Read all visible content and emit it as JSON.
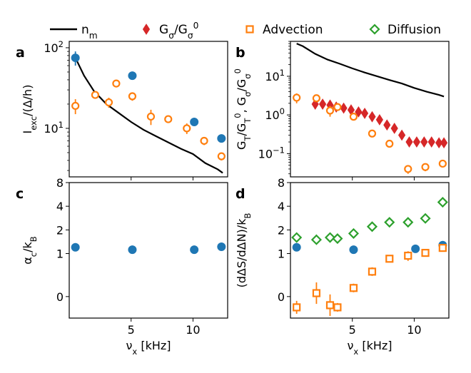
{
  "chart_data": [
    {
      "id": "a",
      "type": "scatter",
      "panel_label": "a",
      "ylabel": "I_exc/(Δ/h)",
      "xlabel": "",
      "yscale": "log",
      "xlim": [
        0,
        12.8
      ],
      "ylim": [
        2.5,
        120
      ],
      "yticks": [
        {
          "v": 10,
          "label": "10¹"
        },
        {
          "v": 100,
          "label": "10²"
        }
      ],
      "xticks": [
        {
          "v": 5,
          "label": ""
        },
        {
          "v": 10,
          "label": ""
        }
      ],
      "series": [
        {
          "name": "n_m",
          "kind": "line",
          "color": "#000000",
          "x": [
            0.5,
            1.2,
            2.0,
            3.0,
            4.0,
            5.0,
            6.0,
            7.0,
            8.0,
            9.0,
            10.0,
            11.0,
            12.0,
            12.4
          ],
          "y": [
            75,
            45,
            29,
            20,
            15.5,
            12,
            9.6,
            8.0,
            6.7,
            5.6,
            4.8,
            3.7,
            3.1,
            2.8
          ]
        },
        {
          "name": "Advection",
          "kind": "circle_open",
          "color": "#ff7f0e",
          "x": [
            0.5,
            2.1,
            3.2,
            3.8,
            5.1,
            6.6,
            8.0,
            9.5,
            10.9,
            12.3
          ],
          "y": [
            19,
            26,
            21,
            36,
            25,
            14,
            13,
            10,
            7,
            4.5
          ],
          "err": [
            4,
            2,
            3,
            2,
            3,
            3,
            1,
            1.5,
            0.8,
            0.5
          ]
        },
        {
          "name": "Diffusion",
          "kind": "circle_filled",
          "color": "#1f77b4",
          "x": [
            0.5,
            5.1,
            10.1,
            12.3
          ],
          "y": [
            75,
            45,
            12,
            7.5
          ],
          "err": [
            15,
            0,
            0,
            0
          ]
        }
      ]
    },
    {
      "id": "b",
      "type": "scatter",
      "panel_label": "b",
      "ylabel": "G_T/G_T⁰, G_σ/G_σ⁰",
      "xlabel": "",
      "yscale": "log",
      "xlim": [
        0,
        12.8
      ],
      "ylim": [
        0.025,
        80
      ],
      "yticks": [
        {
          "v": 0.1,
          "label": "10⁻¹"
        },
        {
          "v": 1,
          "label": "10⁰"
        },
        {
          "v": 10,
          "label": "10¹"
        }
      ],
      "xticks": [
        {
          "v": 5,
          "label": ""
        },
        {
          "v": 10,
          "label": ""
        }
      ],
      "series": [
        {
          "name": "n_m",
          "kind": "line",
          "color": "#000000",
          "x": [
            0.5,
            1.0,
            2.0,
            3.0,
            4.0,
            5.0,
            6.0,
            7.0,
            8.0,
            9.0,
            10.0,
            11.0,
            12.0,
            12.4
          ],
          "y": [
            70,
            60,
            38,
            27,
            21,
            16,
            12.5,
            10,
            8,
            6.5,
            5,
            4,
            3.3,
            3.0
          ]
        },
        {
          "name": "G_σ/G_σ⁰",
          "kind": "diamond_filled",
          "color": "#d62728",
          "x": [
            2.0,
            2.6,
            3.2,
            3.7,
            4.3,
            4.9,
            5.5,
            6.0,
            6.6,
            7.2,
            7.8,
            8.4,
            9.0,
            9.6,
            10.2,
            10.8,
            11.4,
            12.0,
            12.4
          ],
          "y": [
            1.9,
            1.9,
            1.8,
            1.6,
            1.5,
            1.35,
            1.2,
            1.1,
            0.9,
            0.75,
            0.55,
            0.45,
            0.3,
            0.2,
            0.2,
            0.2,
            0.2,
            0.19,
            0.19
          ]
        },
        {
          "name": "Advection",
          "kind": "circle_open",
          "color": "#ff7f0e",
          "x": [
            0.5,
            2.1,
            3.2,
            3.8,
            5.1,
            6.6,
            8.0,
            9.5,
            10.9,
            12.3
          ],
          "y": [
            2.8,
            2.7,
            1.3,
            1.6,
            0.9,
            0.33,
            0.18,
            0.04,
            0.045,
            0.055
          ],
          "err": [
            0.8,
            0.4,
            0.4,
            0.3,
            0.15,
            0.04,
            0.02,
            0.01,
            0.01,
            0.01
          ]
        }
      ]
    },
    {
      "id": "c",
      "type": "scatter",
      "panel_label": "c",
      "ylabel": "α_c/k_B",
      "xlabel": "ν_x [kHz]",
      "yscale": "symlog",
      "xlim": [
        0,
        12.8
      ],
      "ylim": [
        -0.5,
        8
      ],
      "yticks": [
        {
          "v": 0,
          "label": "0"
        },
        {
          "v": 1,
          "label": "1"
        },
        {
          "v": 2,
          "label": "2"
        },
        {
          "v": 4,
          "label": "4"
        },
        {
          "v": 8,
          "label": "8"
        }
      ],
      "xticks": [
        {
          "v": 5,
          "label": "5"
        },
        {
          "v": 10,
          "label": "10"
        }
      ],
      "series": [
        {
          "name": "Diffusion",
          "kind": "circle_filled",
          "color": "#1f77b4",
          "x": [
            0.5,
            5.1,
            10.1,
            12.3
          ],
          "y": [
            1.2,
            1.12,
            1.12,
            1.22
          ]
        }
      ]
    },
    {
      "id": "d",
      "type": "scatter",
      "panel_label": "d",
      "ylabel": "(dΔS/dΔN)/k_B",
      "xlabel": "ν_x [kHz]",
      "yscale": "symlog",
      "xlim": [
        0,
        12.8
      ],
      "ylim": [
        -0.5,
        8
      ],
      "yticks": [
        {
          "v": 0,
          "label": "0"
        },
        {
          "v": 1,
          "label": "1"
        },
        {
          "v": 2,
          "label": "2"
        },
        {
          "v": 4,
          "label": "4"
        },
        {
          "v": 8,
          "label": "8"
        }
      ],
      "xticks": [
        {
          "v": 5,
          "label": "5"
        },
        {
          "v": 10,
          "label": "10"
        }
      ],
      "series": [
        {
          "name": "Diffusion",
          "kind": "diamond_open",
          "color": "#2ca02c",
          "x": [
            0.5,
            2.1,
            3.2,
            3.8,
            5.1,
            6.6,
            8.0,
            9.5,
            10.9,
            12.3
          ],
          "y": [
            1.6,
            1.5,
            1.6,
            1.55,
            1.8,
            2.2,
            2.5,
            2.5,
            2.8,
            4.5
          ],
          "err": [
            0.1,
            0.1,
            0.1,
            0.1,
            0.1,
            0.1,
            0.1,
            0.3,
            0.1,
            0.1
          ]
        },
        {
          "name": "Diffusion",
          "kind": "circle_filled",
          "color": "#1f77b4",
          "x": [
            0.5,
            5.1,
            10.1,
            12.3
          ],
          "y": [
            1.2,
            1.12,
            1.15,
            1.28
          ]
        },
        {
          "name": "Advection",
          "kind": "square_open",
          "color": "#ff7f0e",
          "x": [
            0.5,
            2.1,
            3.2,
            3.8,
            5.1,
            6.6,
            8.0,
            9.5,
            10.9,
            12.3
          ],
          "y": [
            -0.25,
            0.08,
            -0.2,
            -0.25,
            0.2,
            0.58,
            0.88,
            0.95,
            1.02,
            1.18
          ],
          "err": [
            0.15,
            0.25,
            0.25,
            0.1,
            0.1,
            0.1,
            0.05,
            0.12,
            0.05,
            0.05
          ]
        }
      ]
    }
  ],
  "legend": {
    "position": "top",
    "items": [
      {
        "kind": "line",
        "color": "#000000",
        "label": "n_m"
      },
      {
        "kind": "diamond_filled",
        "color": "#d62728",
        "label": "G_σ/G_σ⁰"
      },
      {
        "kind": "square_open",
        "color": "#ff7f0e",
        "label": "Advection"
      },
      {
        "kind": "diamond_open",
        "color": "#2ca02c",
        "label": "Diffusion"
      }
    ]
  }
}
